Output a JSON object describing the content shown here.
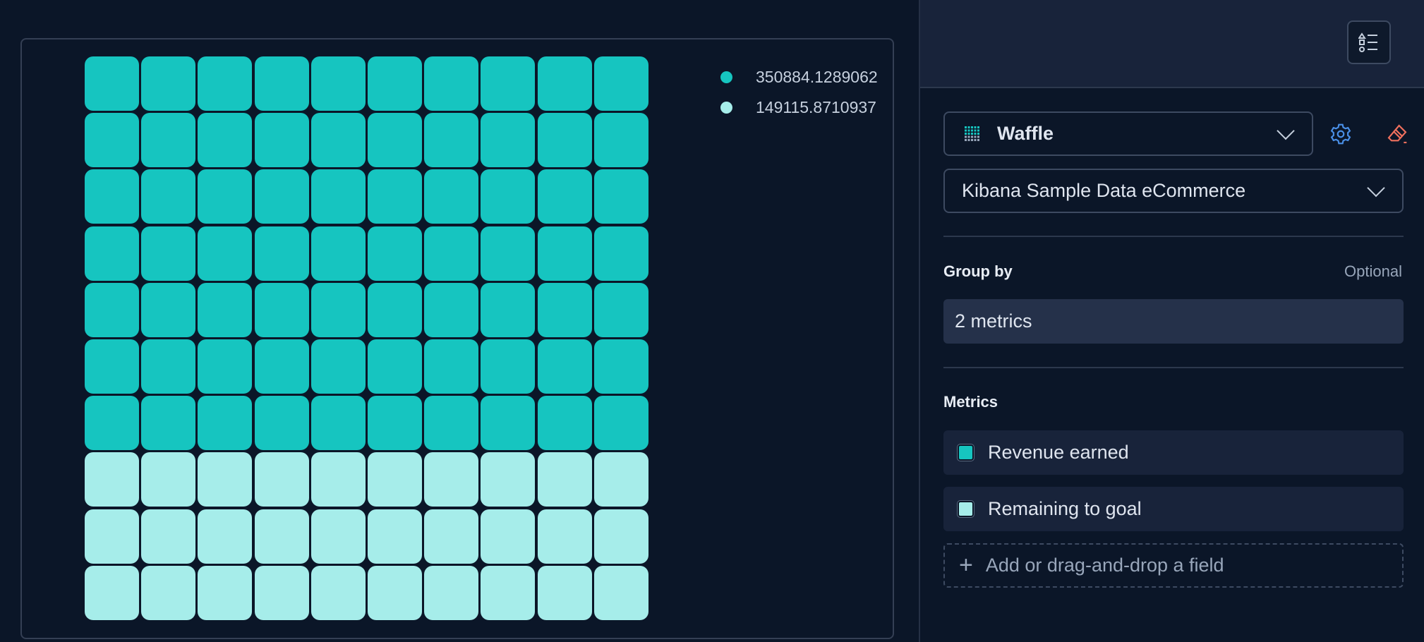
{
  "chart_data": {
    "type": "waffle",
    "rows": 10,
    "columns": 10,
    "series": [
      {
        "name": "350884.1289062",
        "value": 350884.1289062,
        "cells": 70,
        "color": "#16c5c0"
      },
      {
        "name": "149115.8710937",
        "value": 149115.8710937,
        "cells": 30,
        "color": "#a6edea"
      }
    ],
    "legend_position": "right"
  },
  "panel": {
    "chart_type": "Waffle",
    "data_view": "Kibana Sample Data eCommerce",
    "group_by_label": "Group by",
    "optional_label": "Optional",
    "group_by_value": "2 metrics",
    "metrics_label": "Metrics",
    "metrics": [
      {
        "label": "Revenue earned",
        "color": "#16c5c0"
      },
      {
        "label": "Remaining to goal",
        "color": "#a6edea"
      }
    ],
    "add_field": "Add or drag-and-drop a field"
  },
  "icons": {
    "legend": "legend-icon",
    "settings": "gear-icon",
    "clear": "eraser-icon",
    "chart_type": "waffle-icon",
    "add": "plus-icon"
  }
}
